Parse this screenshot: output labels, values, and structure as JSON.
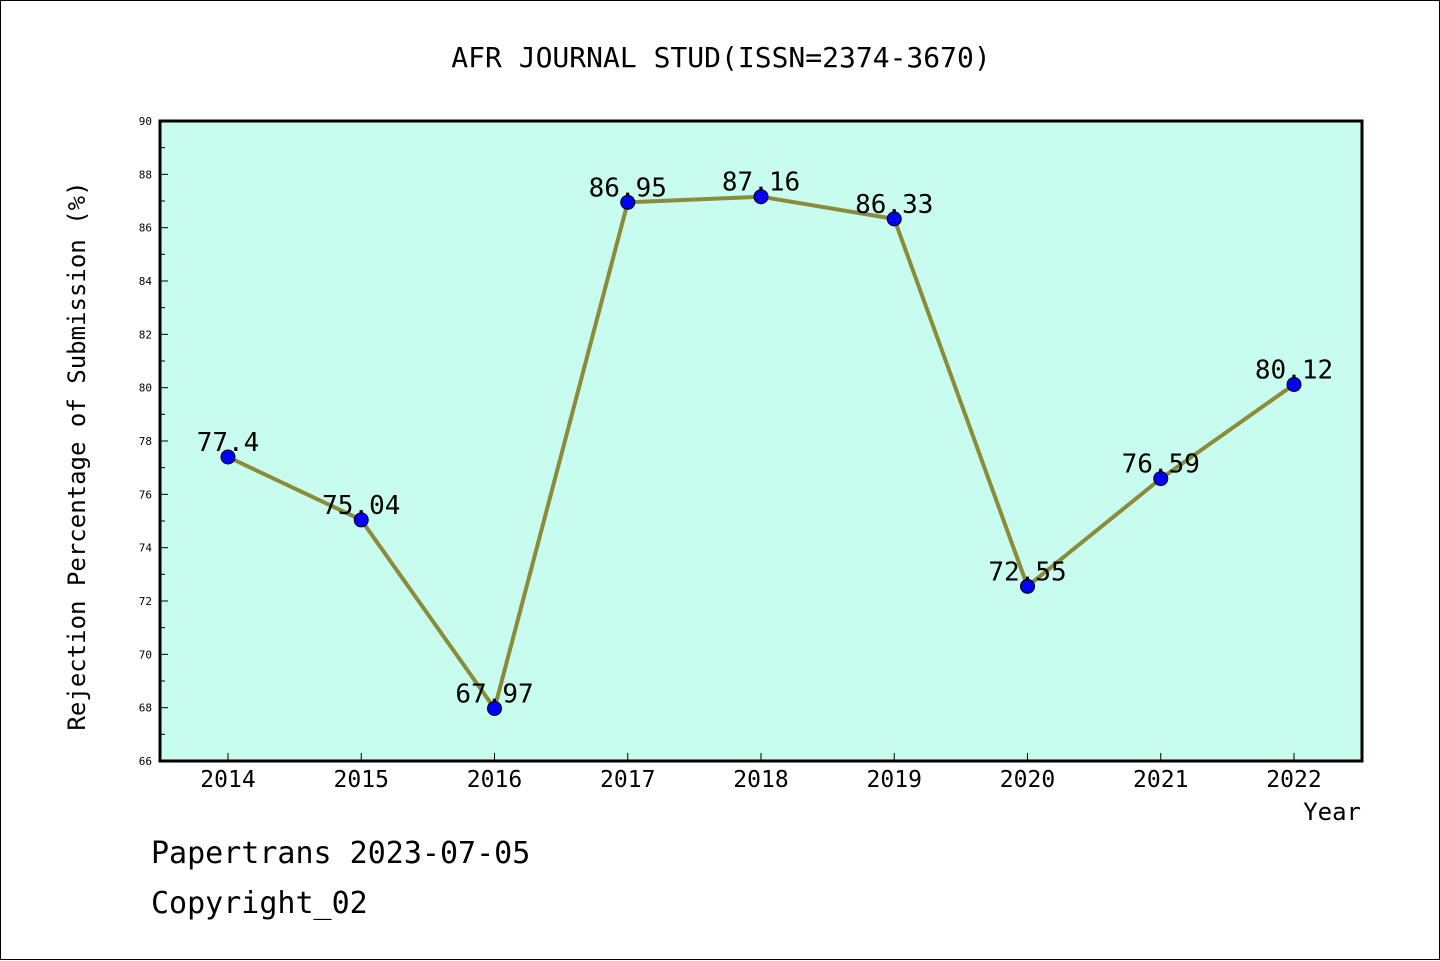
{
  "chart_data": {
    "type": "line",
    "title": "AFR JOURNAL STUD(ISSN=2374-3670)",
    "xlabel": "Year",
    "ylabel": "Rejection Percentage of Submission (%)",
    "categories": [
      "2014",
      "2015",
      "2016",
      "2017",
      "2018",
      "2019",
      "2020",
      "2021",
      "2022"
    ],
    "series": [
      {
        "values": [
          77.4,
          75.04,
          67.97,
          86.95,
          87.16,
          86.33,
          72.55,
          76.59,
          80.12
        ],
        "labels": [
          "77.4",
          "75.04",
          "67.97",
          "86.95",
          "87.16",
          "86.33",
          "72.55",
          "76.59",
          "80.12"
        ]
      }
    ],
    "ylim": [
      66,
      90
    ],
    "yticks": [
      66,
      68,
      70,
      72,
      74,
      76,
      78,
      80,
      82,
      84,
      86,
      88,
      90
    ],
    "grid": false,
    "colors": {
      "plot_background": "#c8fcee",
      "line": "#8b8b3a",
      "marker": "#0000ff"
    }
  },
  "footer": {
    "line1": "Papertrans 2023-07-05",
    "line2": "Copyright_02"
  }
}
